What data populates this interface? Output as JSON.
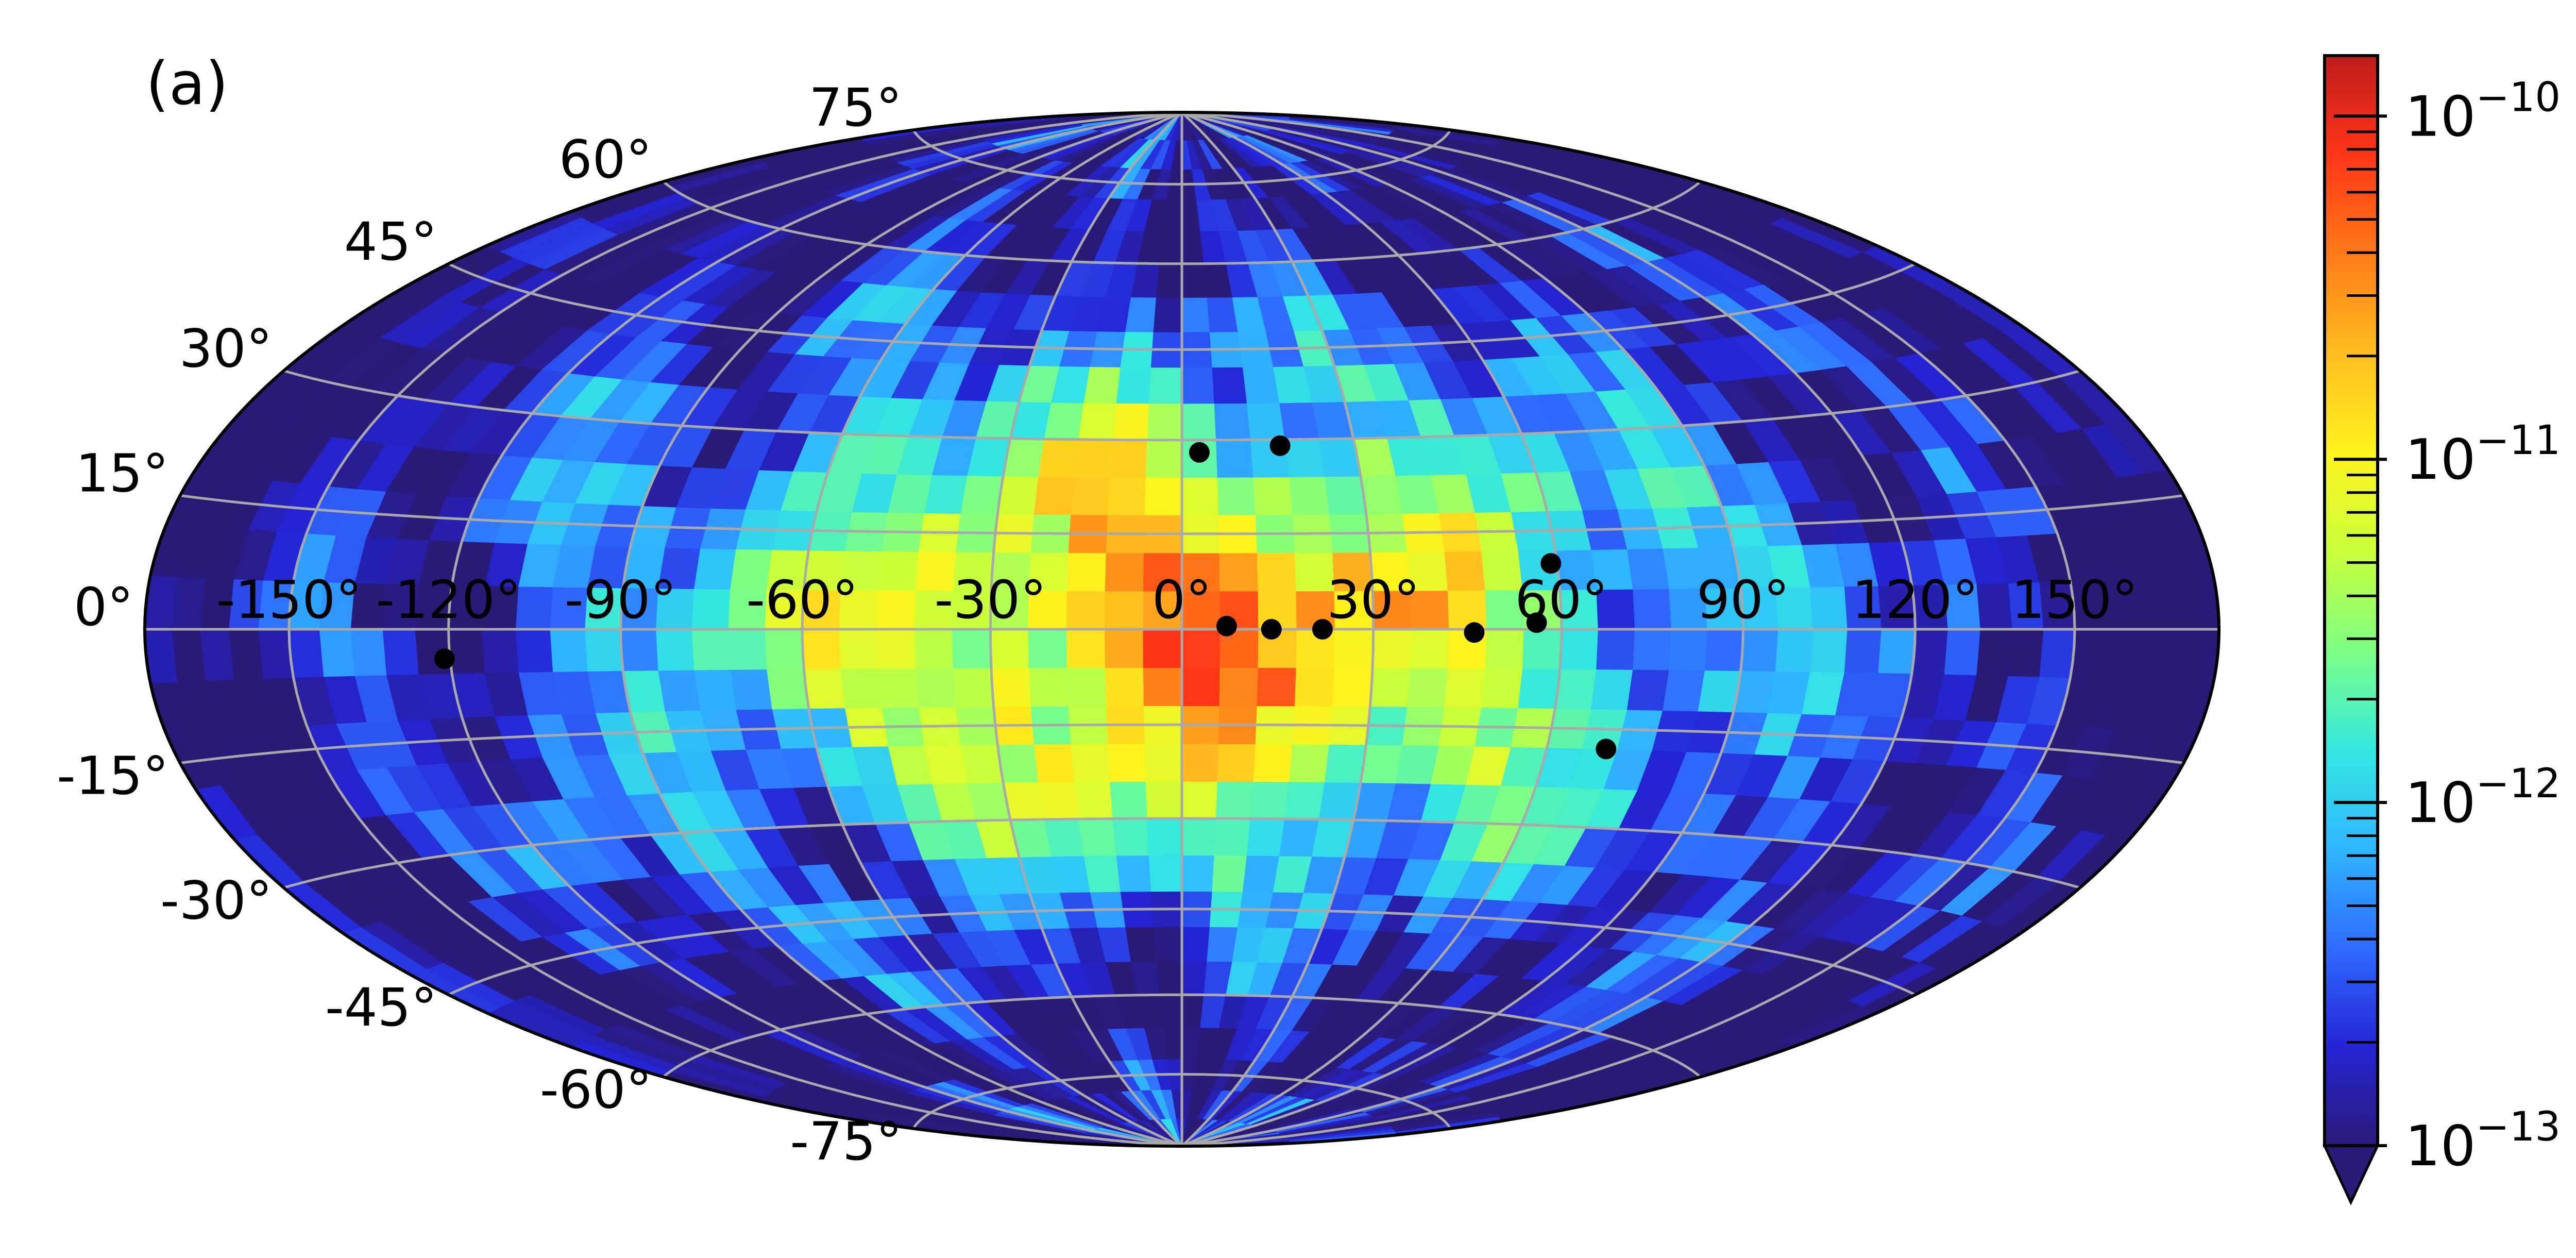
{
  "panel_label": "(a)",
  "colors": {
    "background": "#ffffff",
    "graticule": "#a9a9a9",
    "outline": "#000000",
    "marker": "#000000",
    "cmap": [
      "#2a1a78",
      "#2424d6",
      "#2f6bff",
      "#2fb6ff",
      "#33e8e0",
      "#7dff83",
      "#c8ff3a",
      "#fff31d",
      "#ffbd1f",
      "#ff7a18",
      "#ff3518",
      "#bf1b1b"
    ]
  },
  "chart_data": {
    "type": "heatmap",
    "projection": "hammer-aitoff",
    "title": "",
    "xlabel": "",
    "ylabel": "",
    "grid": true,
    "longitude_ticks": [
      "-150°",
      "-120°",
      "-90°",
      "-60°",
      "-30°",
      "0°",
      "30°",
      "60°",
      "90°",
      "120°",
      "150°"
    ],
    "longitude_values": [
      -150,
      -120,
      -90,
      -60,
      -30,
      0,
      30,
      60,
      90,
      120,
      150
    ],
    "latitude_ticks": [
      "75°",
      "60°",
      "45°",
      "30°",
      "15°",
      "0°",
      "-15°",
      "-30°",
      "-45°",
      "-60°",
      "-75°"
    ],
    "latitude_values": [
      75,
      60,
      45,
      30,
      15,
      0,
      -15,
      -30,
      -45,
      -60,
      -75
    ],
    "colorbar": {
      "scale": "log",
      "range": [
        1e-13,
        1.5e-10
      ],
      "extend": "min",
      "ticks": [
        {
          "base": "10",
          "exp": "−10",
          "value": 1e-10
        },
        {
          "base": "10",
          "exp": "−11",
          "value": 1e-11
        },
        {
          "base": "10",
          "exp": "−12",
          "value": 1e-12
        },
        {
          "base": "10",
          "exp": "−13",
          "value": 1e-13
        }
      ]
    },
    "field_description": "log-scale intensity peaking near (0°,0°), decreasing toward the poles and outer longitudes",
    "markers": [
      {
        "lon": 3,
        "lat": 28
      },
      {
        "lon": 17,
        "lat": 29
      },
      {
        "lon": 7,
        "lat": 0.5
      },
      {
        "lon": 14,
        "lat": 0
      },
      {
        "lon": 22,
        "lat": 0
      },
      {
        "lon": 46,
        "lat": -0.5
      },
      {
        "lon": 56,
        "lat": 1
      },
      {
        "lon": 59,
        "lat": 10
      },
      {
        "lon": 70,
        "lat": -18
      },
      {
        "lon": -121,
        "lat": -4
      }
    ]
  }
}
